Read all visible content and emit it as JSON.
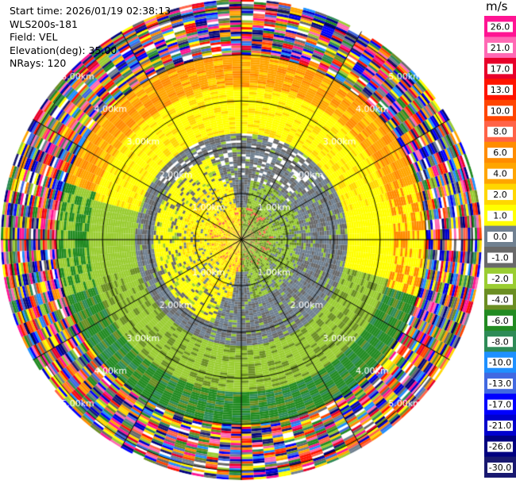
{
  "header": {
    "start_time": "Start time: 2026/01/19 02:38:13",
    "instrument": "WLS200s-181",
    "field": "Field: VEL",
    "elevation": "Elevation(deg): 35.00",
    "nrays": "NRays: 120"
  },
  "colorbar": {
    "unit": "m/s",
    "labels": [
      "26.0",
      "21.0",
      "17.0",
      "13.0",
      "10.0",
      "8.0",
      "6.0",
      "4.0",
      "2.0",
      "1.0",
      "0.0",
      "-1.0",
      "-2.0",
      "-4.0",
      "-6.0",
      "-8.0",
      "-10.0",
      "-13.0",
      "-17.0",
      "-21.0",
      "-26.0",
      "-30.0"
    ],
    "colors": [
      "#ff1493",
      "#ff69b4",
      "#e8002a",
      "#ff1400",
      "#ff4500",
      "#ff6347",
      "#ff8c00",
      "#ffa500",
      "#ffd700",
      "#ffff00",
      "#708090",
      "#696969",
      "#9acd32",
      "#6b8e23",
      "#228b22",
      "#2e8b57",
      "#1e90ff",
      "#4169e1",
      "#0000ff",
      "#0000cd",
      "#000080",
      "#191970"
    ]
  },
  "chart_data": {
    "type": "heatmap",
    "plot_kind": "PPI radial velocity",
    "field": "VEL",
    "units": "m/s",
    "elevation_deg": 35.0,
    "n_rays": 120,
    "max_range_km": 5.2,
    "range_rings_km": [
      1,
      2,
      3,
      4,
      5
    ],
    "ring_labels": [
      "1.00km",
      "2.00km",
      "3.00km",
      "4.00km",
      "5.00km"
    ],
    "spoke_angles_deg": [
      0,
      30,
      60,
      90,
      120,
      150,
      180,
      210,
      240,
      270,
      300,
      330
    ],
    "velocity_by_range": [
      {
        "range_km": [
          0.0,
          0.7
        ],
        "velocity": 0.0,
        "note": "mixed"
      },
      {
        "range_km": [
          0.7,
          1.3
        ],
        "velocity_west": 2.0,
        "velocity_east": -2.0
      },
      {
        "range_km": [
          1.3,
          2.3
        ],
        "velocity": 0.0
      },
      {
        "range_km": [
          2.3,
          3.3
        ],
        "velocity_north": 2.5,
        "velocity_south": -2.0
      },
      {
        "range_km": [
          3.3,
          4.0
        ],
        "velocity_north": 5.0,
        "velocity_south": -5.0
      },
      {
        "range_km": [
          4.0,
          5.2
        ],
        "velocity": "noise"
      }
    ]
  }
}
